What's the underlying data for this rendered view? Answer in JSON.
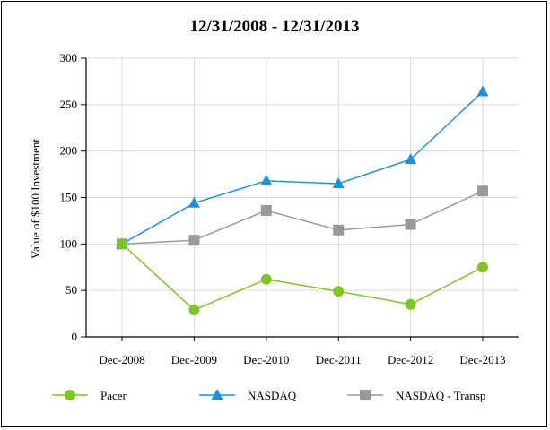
{
  "chart_data": {
    "type": "line",
    "title": "12/31/2008 - 12/31/2013",
    "xlabel": "",
    "ylabel": "Value of $100 Investment",
    "categories": [
      "Dec-2008",
      "Dec-2009",
      "Dec-2010",
      "Dec-2011",
      "Dec-2012",
      "Dec-2013"
    ],
    "ylim": [
      0,
      300
    ],
    "yticks": [
      0,
      50,
      100,
      150,
      200,
      250,
      300
    ],
    "grid": true,
    "legend_position": "bottom",
    "series": [
      {
        "name": "Pacer",
        "color": "#7cc622",
        "marker": "circle",
        "values": [
          100,
          29,
          62,
          49,
          35,
          75
        ]
      },
      {
        "name": "NASDAQ",
        "color": "#1f8fe6",
        "marker": "triangle",
        "values": [
          100,
          144,
          168,
          165,
          191,
          264
        ]
      },
      {
        "name": "NASDAQ - Transp",
        "color": "#999999",
        "marker": "square",
        "values": [
          100,
          104,
          136,
          115,
          121,
          157
        ]
      }
    ]
  }
}
